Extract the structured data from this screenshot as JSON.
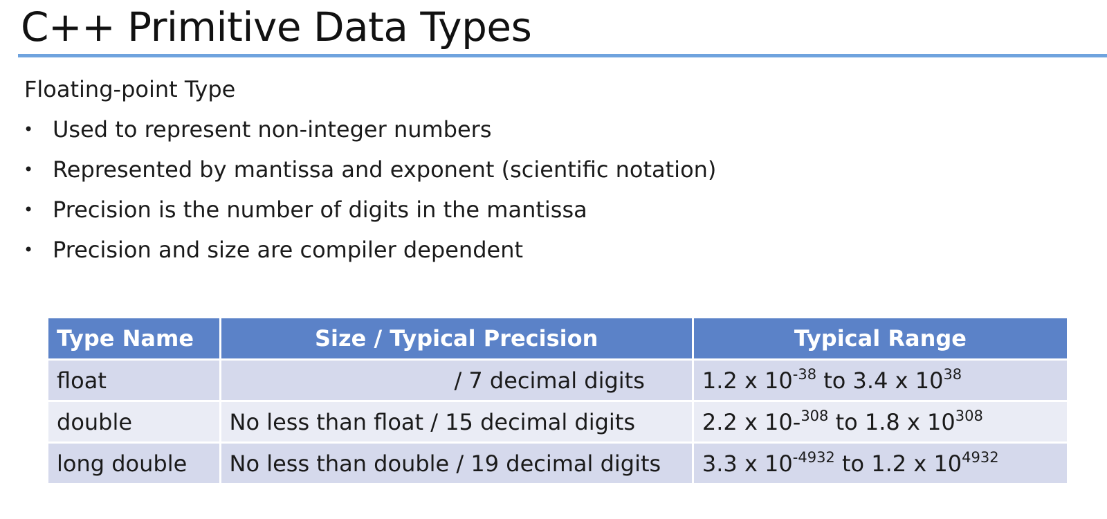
{
  "slide": {
    "title": "C++ Primitive Data Types",
    "section_heading": "Floating-point Type",
    "bullets": [
      "Used to represent non-integer numbers",
      "Represented by mantissa and exponent (scientific notation)",
      "Precision is the number of digits in the mantissa",
      "Precision and size are compiler dependent"
    ],
    "bullet_glyph": "•"
  },
  "table": {
    "headers": [
      "Type Name",
      "Size / Typical Precision",
      "Typical Range"
    ],
    "rows": [
      {
        "type_name": "float",
        "size_precision": "/ 7 decimal digits",
        "range": {
          "low_base": "1.2 x 10",
          "low_exp": "-38",
          "sep": " to ",
          "high_base": "3.4 x 10",
          "high_exp": "38"
        }
      },
      {
        "type_name": "double",
        "size_precision": "No less than float / 15 decimal digits",
        "range": {
          "low_base": "2.2 x 10-",
          "low_exp": "308",
          "sep": " to ",
          "high_base": "1.8 x 10",
          "high_exp": "308"
        }
      },
      {
        "type_name": "long double",
        "size_precision": "No less than double / 19 decimal digits",
        "range": {
          "low_base": "3.3 x 10",
          "low_exp": "-4932",
          "sep": " to ",
          "high_base": "1.2 x 10",
          "high_exp": "4932"
        }
      }
    ]
  },
  "colors": {
    "title_rule": "#6fa3de",
    "header_bg": "#5b82c8",
    "row_odd_bg": "#d5d9ec",
    "row_even_bg": "#eaecf5"
  }
}
